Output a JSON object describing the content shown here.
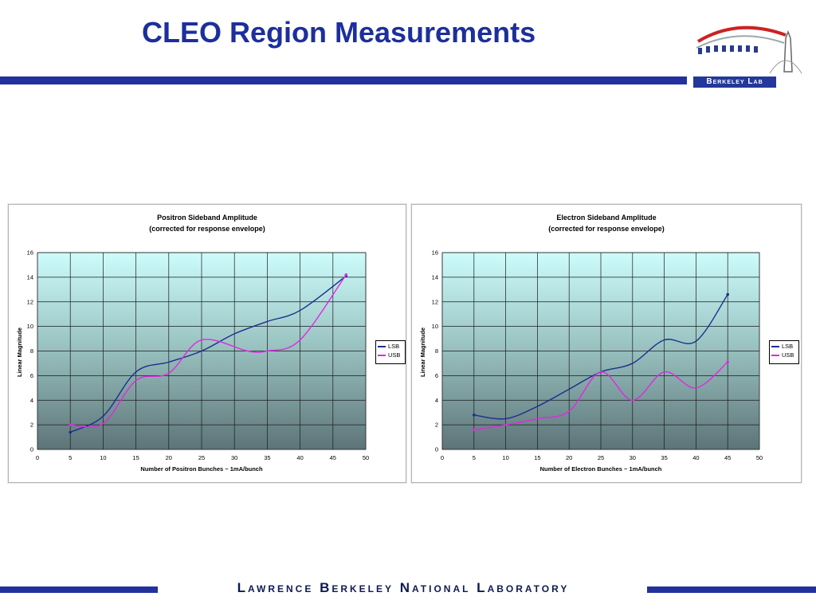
{
  "slide": {
    "title": "CLEO Region Measurements",
    "footer": "Lawrence Berkeley National Laboratory",
    "logo_text": "Berkeley Lab",
    "colors": {
      "title": "#1c2f9c",
      "rule": "#22319c"
    }
  },
  "chart_data": [
    {
      "type": "line",
      "title": "Positron Sideband Amplitude",
      "subtitle": "(corrected for response envelope)",
      "xlabel": "Number of Positron Bunches ~ 1mA/bunch",
      "ylabel": "Linear Magnitude",
      "xlim": [
        0,
        50
      ],
      "ylim": [
        0,
        16
      ],
      "xticks": [
        "0",
        "5",
        "10",
        "15",
        "20",
        "25",
        "30",
        "35",
        "40",
        "45",
        "50"
      ],
      "yticks": [
        "0",
        "2",
        "4",
        "6",
        "8",
        "10",
        "12",
        "14",
        "16"
      ],
      "grid": true,
      "legend": "right",
      "series": [
        {
          "name": "LSB",
          "color": "#1a2f8c",
          "x": [
            5,
            10,
            15,
            20,
            25,
            30,
            35,
            40,
            47
          ],
          "y": [
            1.4,
            2.7,
            6.3,
            7.1,
            8.0,
            9.4,
            10.4,
            11.3,
            14.1
          ]
        },
        {
          "name": "USB",
          "color": "#e028e0",
          "x": [
            5,
            10,
            15,
            20,
            25,
            32,
            35,
            40,
            47
          ],
          "y": [
            2.0,
            2.1,
            5.6,
            6.2,
            8.9,
            8.0,
            8.0,
            8.9,
            14.2
          ]
        }
      ]
    },
    {
      "type": "line",
      "title": "Electron Sideband Amplitude",
      "subtitle": "(corrected for response envelope)",
      "xlabel": "Number of Electron Bunches ~ 1mA/bunch",
      "ylabel": "Linear Magnitude",
      "xlim": [
        0,
        50
      ],
      "ylim": [
        0,
        16
      ],
      "xticks": [
        "0",
        "5",
        "10",
        "15",
        "20",
        "25",
        "30",
        "35",
        "40",
        "45",
        "50"
      ],
      "yticks": [
        "0",
        "2",
        "4",
        "6",
        "8",
        "10",
        "12",
        "14",
        "16"
      ],
      "grid": true,
      "legend": "right",
      "series": [
        {
          "name": "LSB",
          "color": "#1a2f8c",
          "x": [
            5,
            10,
            15,
            20,
            25,
            30,
            35,
            40,
            45
          ],
          "y": [
            2.8,
            2.5,
            3.5,
            4.9,
            6.3,
            7.0,
            8.9,
            8.8,
            12.6
          ]
        },
        {
          "name": "USB",
          "color": "#e028e0",
          "x": [
            5,
            10,
            15,
            20,
            25,
            30,
            35,
            40,
            45
          ],
          "y": [
            1.6,
            2.0,
            2.5,
            3.1,
            6.3,
            4.0,
            6.3,
            5.0,
            7.1
          ]
        }
      ]
    }
  ]
}
